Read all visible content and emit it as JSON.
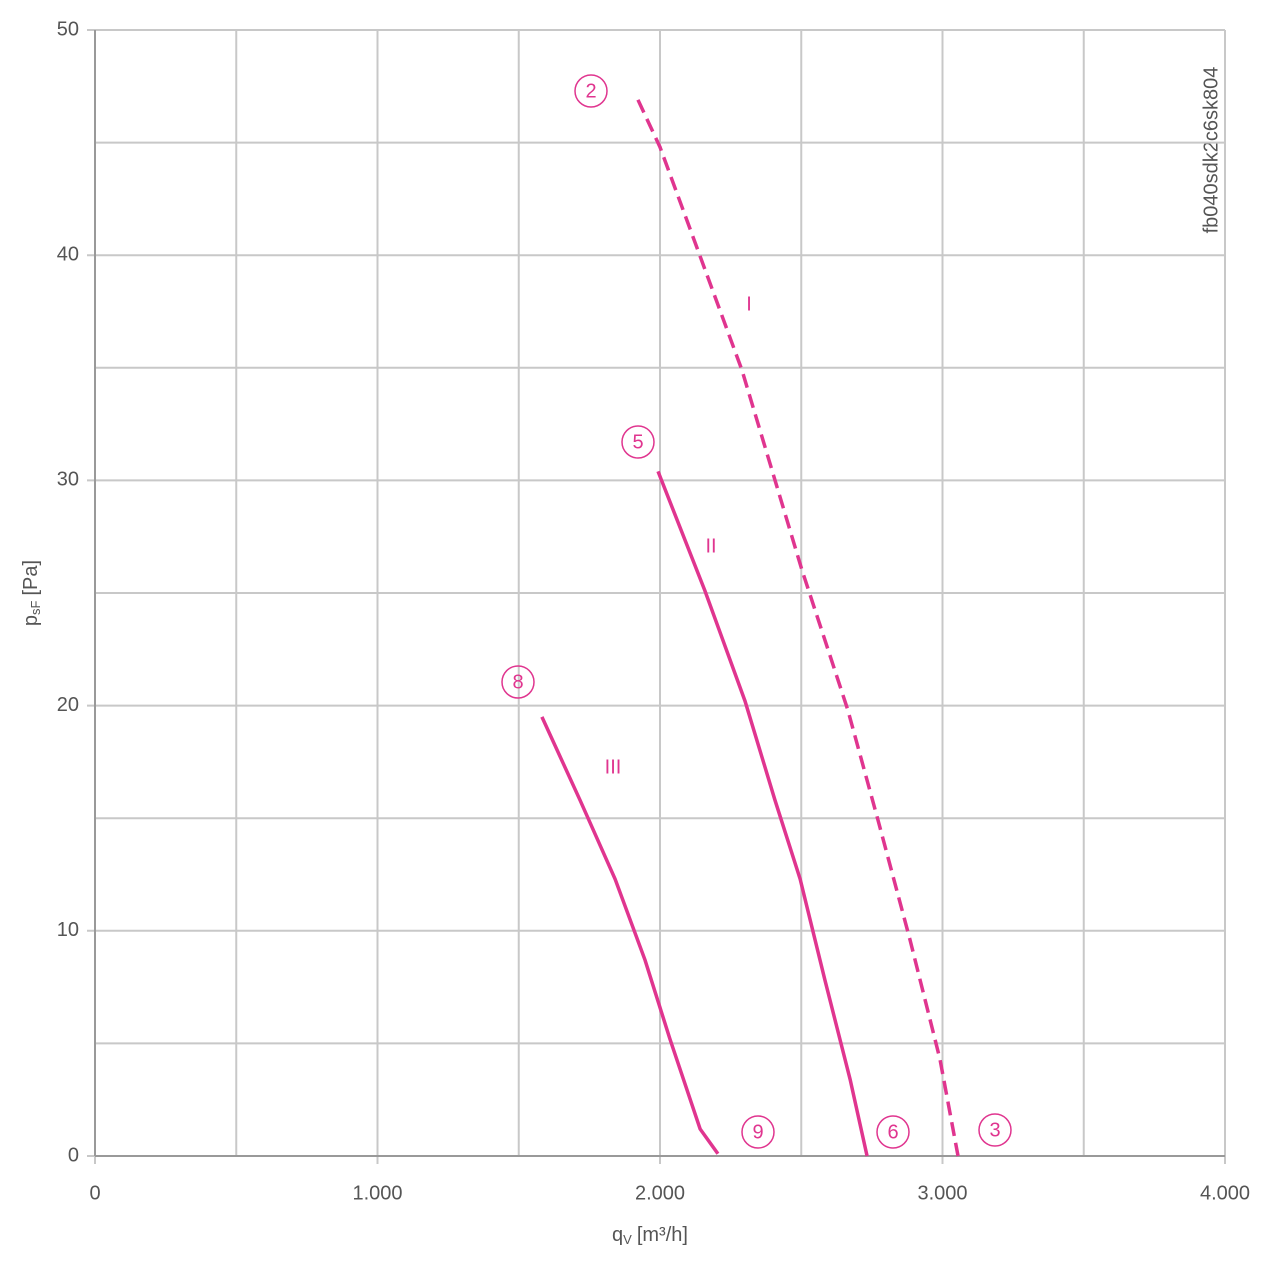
{
  "chart_data": {
    "type": "line",
    "side_text": "fb040sdk2c6sk804",
    "x_label": {
      "main": "q",
      "sub": "V",
      "unit": "[m³/h]"
    },
    "y_label": {
      "main": "p",
      "sub": "sF",
      "unit": "[Pa]"
    },
    "xlim": [
      0,
      4000
    ],
    "ylim": [
      0,
      50
    ],
    "xticks": [
      0,
      {
        "value": 1000,
        "label": "1.000"
      },
      {
        "value": 2000,
        "label": "2.000"
      },
      {
        "value": 3000,
        "label": "3.000"
      },
      {
        "value": 4000,
        "label": "4.000"
      }
    ],
    "yticks": [
      0,
      10,
      20,
      30,
      40,
      50
    ],
    "xminorticks": [
      500,
      1500,
      2500,
      3500
    ],
    "yminorticks": [
      5,
      15,
      25,
      35,
      45
    ],
    "grid": true,
    "series": [
      {
        "name": "I",
        "color": "#e0358f",
        "dashed": true,
        "x": [
          1922,
          2000,
          2290,
          2503,
          2665,
          2772,
          2885,
          2991,
          3055
        ],
        "values": [
          46.9,
          44.8,
          34.9,
          26.0,
          19.8,
          14.9,
          9.6,
          4.3,
          0
        ]
      },
      {
        "name": "II",
        "color": "#e0358f",
        "dashed": false,
        "x": [
          1993,
          2159,
          2301,
          2407,
          2496,
          2584,
          2673,
          2733
        ],
        "values": [
          30.4,
          25.1,
          20.2,
          15.8,
          12.3,
          7.8,
          3.4,
          0
        ]
      },
      {
        "name": "III",
        "color": "#e0358f",
        "dashed": false,
        "x": [
          1582,
          1717,
          1841,
          1947,
          2035,
          2142,
          2205
        ],
        "values": [
          19.5,
          15.8,
          12.3,
          8.7,
          5.2,
          1.2,
          0.1
        ]
      }
    ],
    "point_labels": [
      "2",
      "5",
      "8",
      "9",
      "6",
      "3"
    ]
  }
}
